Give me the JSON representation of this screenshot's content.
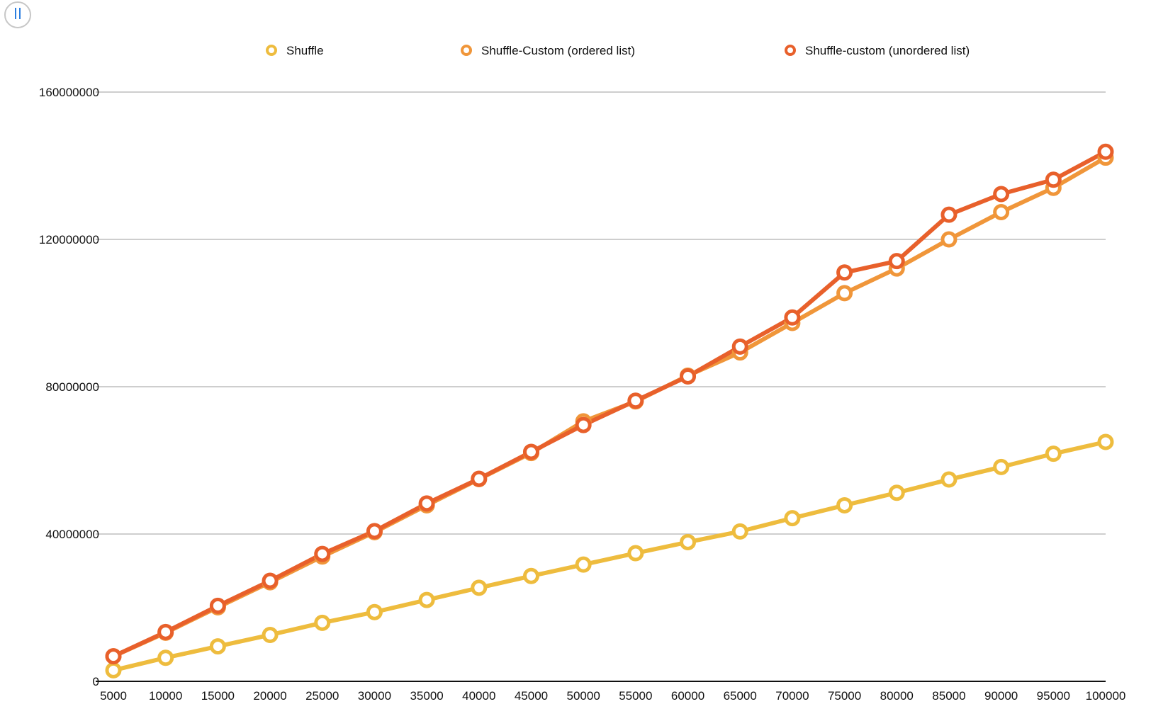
{
  "controls": {
    "pause_icon": "pause-icon"
  },
  "colors": {
    "grid": "#bdbdbd",
    "axis": "#111111",
    "tick_text": "#111111",
    "background": "#ffffff",
    "marker_fill": "#ffffff"
  },
  "chart_data": {
    "type": "line",
    "title": "",
    "xlabel": "",
    "ylabel": "",
    "legend_position": "top",
    "grid": true,
    "x": [
      5000,
      10000,
      15000,
      20000,
      25000,
      30000,
      35000,
      40000,
      45000,
      50000,
      55000,
      60000,
      65000,
      70000,
      75000,
      80000,
      85000,
      90000,
      95000,
      100000
    ],
    "x_tick_labels": [
      "5000",
      "10000",
      "15000",
      "20000",
      "25000",
      "30000",
      "35000",
      "40000",
      "45000",
      "50000",
      "55000",
      "60000",
      "65000",
      "70000",
      "75000",
      "80000",
      "85000",
      "90000",
      "95000",
      "100000"
    ],
    "ylim": [
      0,
      160000000
    ],
    "y_ticks": [
      0,
      40000000,
      80000000,
      120000000,
      160000000
    ],
    "y_tick_labels": [
      "0",
      "40000000",
      "80000000",
      "120000000",
      "160000000"
    ],
    "series": [
      {
        "name": "Shuffle",
        "color": "#eebc3e",
        "values": [
          3000000,
          6400000,
          9500000,
          12600000,
          15900000,
          18800000,
          22100000,
          25400000,
          28600000,
          31700000,
          34800000,
          37800000,
          40700000,
          44300000,
          47800000,
          51200000,
          54800000,
          58200000,
          61800000,
          65000000
        ]
      },
      {
        "name": "Shuffle-Custom (ordered list)",
        "color": "#f0963a",
        "values": [
          6800000,
          13200000,
          20100000,
          26900000,
          33900000,
          40500000,
          47800000,
          54900000,
          62000000,
          70600000,
          76000000,
          83000000,
          89300000,
          97300000,
          105400000,
          112100000,
          120000000,
          127400000,
          134000000,
          142200000
        ]
      },
      {
        "name": "Shuffle-custom (unordered list)",
        "color": "#e8602b",
        "values": [
          6800000,
          13400000,
          20500000,
          27300000,
          34600000,
          40800000,
          48300000,
          55000000,
          62300000,
          69600000,
          76200000,
          82800000,
          90900000,
          98800000,
          111000000,
          114100000,
          126700000,
          132300000,
          136200000,
          143800000
        ]
      }
    ]
  }
}
